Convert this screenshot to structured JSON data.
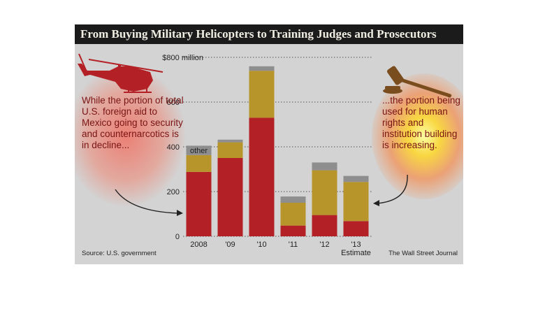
{
  "title": "From Buying Military Helicopters to Training Judges and Prosecutors",
  "annotation_left": "While the portion of total U.S. foreign aid to Mexico going to security and counternarcotics is in decline...",
  "annotation_right": "...the portion being used for human rights and institution building is increasing.",
  "source": "Source: U.S. government",
  "credit": "The Wall Street Journal",
  "icons": [
    "helicopter-icon",
    "gavel-icon"
  ],
  "colors": {
    "security": "#b32025",
    "institution": "#b8952a",
    "other": "#8e8e8e",
    "background": "#d3d3d3",
    "title_bar": "#1b1b1b"
  },
  "chart_data": {
    "type": "bar",
    "stacked": true,
    "categories": [
      "2008",
      "'09",
      "'10",
      "'11",
      "'12",
      "'13"
    ],
    "category_notes": [
      "",
      "",
      "",
      "",
      "",
      "Estimate"
    ],
    "series": [
      {
        "values": [
          288,
          350,
          530,
          48,
          95,
          68
        ]
      },
      {
        "values": [
          75,
          70,
          210,
          102,
          200,
          175
        ]
      },
      {
        "name": "other",
        "values": [
          42,
          12,
          20,
          28,
          35,
          27
        ]
      }
    ],
    "y_ticks": [
      0,
      200,
      400,
      600,
      800
    ],
    "y_tick_labels": [
      "0",
      "200",
      "400",
      "600",
      "$800 million"
    ],
    "ylim": [
      0,
      800
    ],
    "grid": "dotted horizontal",
    "legend": "inline label on first bar"
  }
}
